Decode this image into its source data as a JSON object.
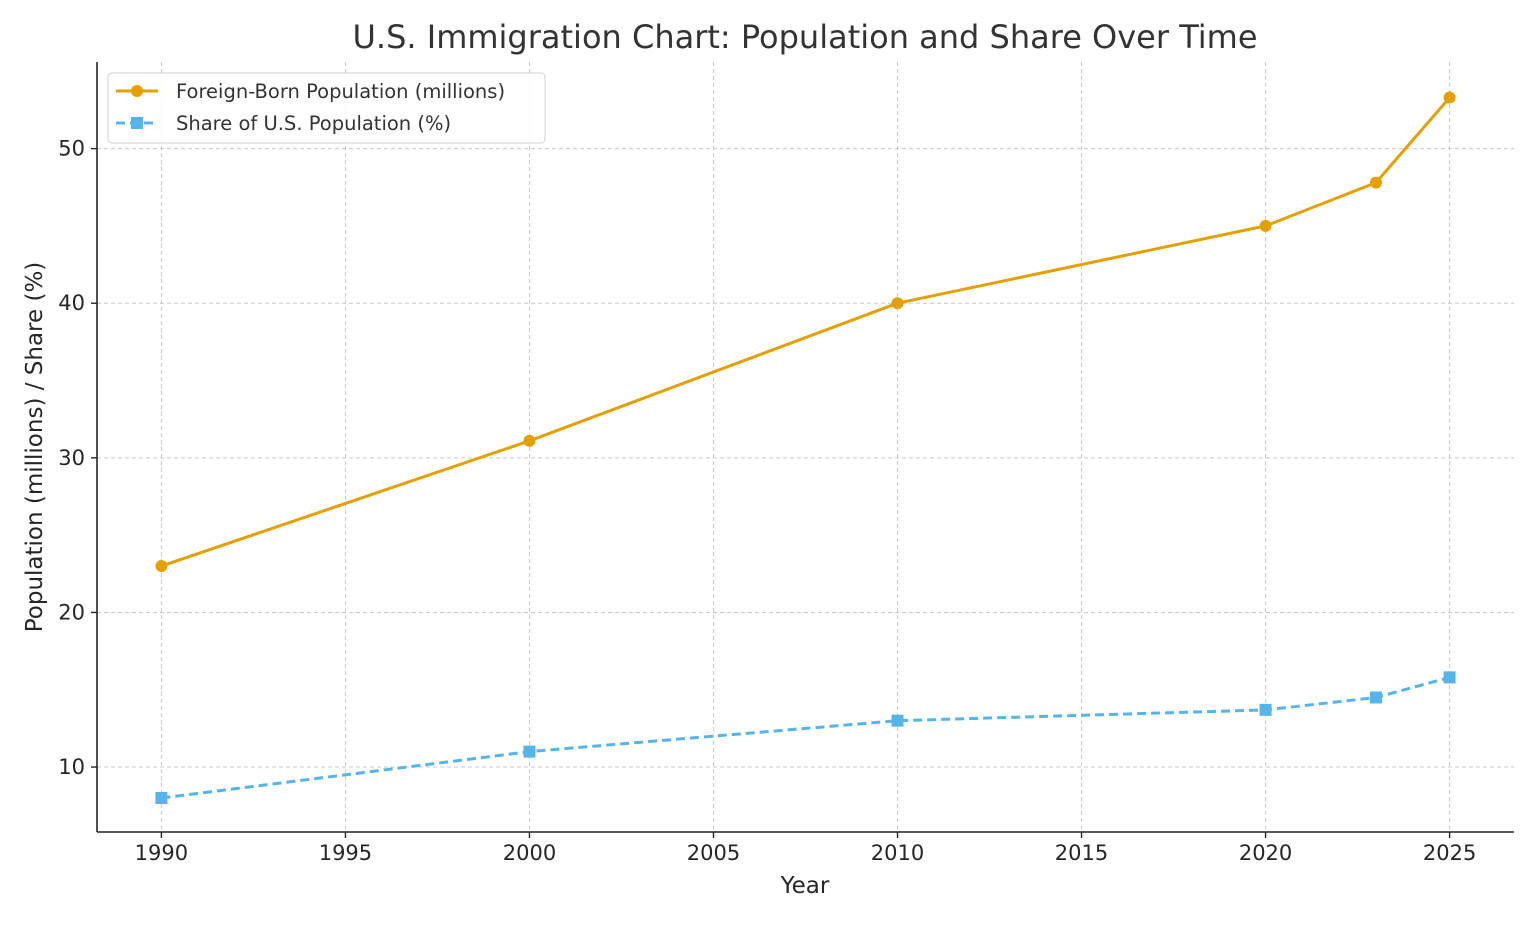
{
  "chart_data": {
    "type": "line",
    "title": "U.S. Immigration Chart: Population and Share Over Time",
    "xlabel": "Year",
    "ylabel": "Population (millions) / Share (%)",
    "x": [
      1990,
      2000,
      2010,
      2020,
      2023,
      2025
    ],
    "xlim": [
      1988.25,
      2026.75
    ],
    "ylim": [
      5.8,
      55.6
    ],
    "xticks": [
      1990,
      1995,
      2000,
      2005,
      2010,
      2015,
      2020,
      2025
    ],
    "yticks": [
      10,
      20,
      30,
      40,
      50
    ],
    "grid": true,
    "legend_position": "top-left",
    "series": [
      {
        "name": "Foreign-Born Population (millions)",
        "values": [
          23.0,
          31.1,
          40.0,
          45.0,
          47.8,
          53.3
        ],
        "color": "#E69F00",
        "marker": "circle",
        "line_style": "solid"
      },
      {
        "name": "Share of U.S. Population (%)",
        "values": [
          8.0,
          11.0,
          13.0,
          13.7,
          14.5,
          15.8
        ],
        "color": "#56B4E9",
        "marker": "square",
        "line_style": "dashed"
      }
    ]
  }
}
